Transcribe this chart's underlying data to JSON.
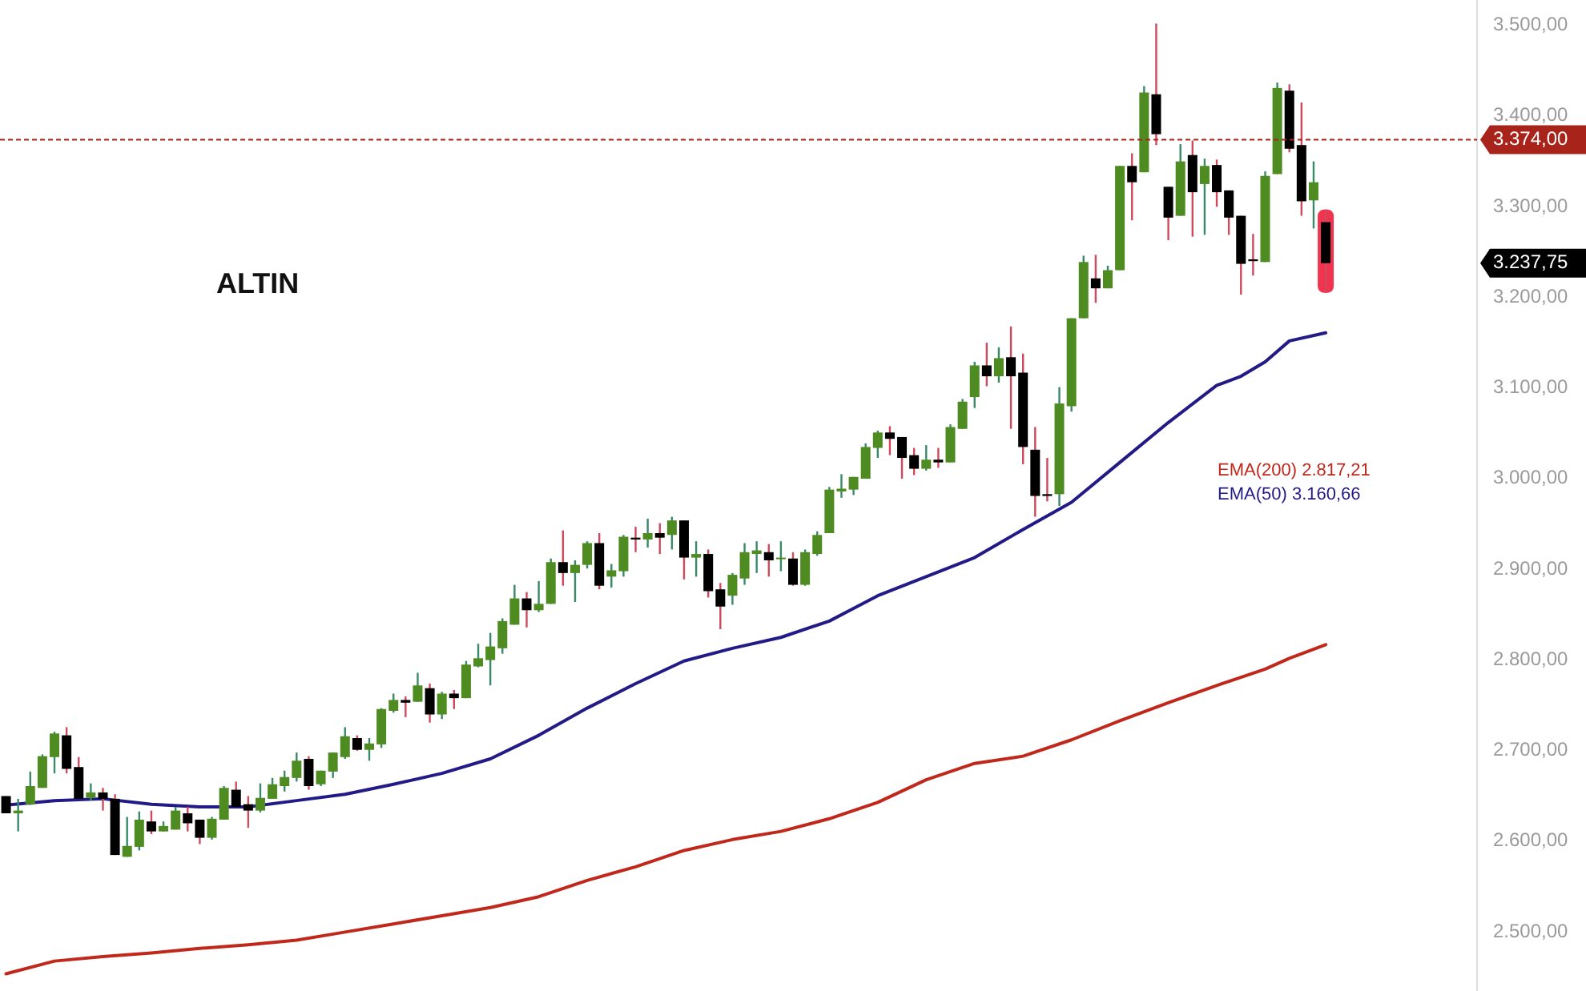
{
  "chart_data": {
    "type": "candlestick",
    "title": "ALTIN",
    "categories": [
      null,
      null,
      null,
      null,
      null,
      null,
      null,
      null,
      null,
      null,
      null,
      null,
      null,
      null,
      null,
      null,
      null,
      null,
      null,
      null,
      null,
      null,
      null,
      null,
      null,
      null,
      null,
      null,
      null,
      null,
      null,
      null,
      null,
      null,
      null,
      null,
      null,
      null,
      null,
      null,
      null,
      null,
      null,
      null,
      null,
      null,
      null,
      null,
      null,
      null,
      null,
      null,
      null,
      null,
      null,
      null,
      null,
      null,
      null,
      null,
      null,
      null,
      null,
      null,
      null,
      null,
      null,
      null,
      null,
      null,
      null,
      null,
      null,
      null,
      null,
      null,
      null,
      null,
      null,
      null,
      null,
      null,
      null,
      null,
      null,
      null,
      null,
      null,
      null,
      null,
      null,
      null,
      null,
      null,
      null,
      null,
      null,
      null,
      null,
      null,
      null,
      null,
      null,
      null,
      null,
      null,
      null,
      null,
      null,
      null,
      null,
      null,
      null,
      null,
      null,
      null,
      null,
      null,
      null,
      null,
      null,
      null
    ],
    "ohlc": [
      [
        2650,
        2650,
        2631,
        2631
      ],
      [
        2631,
        2647,
        2611,
        2634
      ],
      [
        2641,
        2677,
        2640,
        2661
      ],
      [
        2659,
        2696,
        2659,
        2694
      ],
      [
        2693,
        2721,
        2675,
        2719
      ],
      [
        2717,
        2726,
        2675,
        2680
      ],
      [
        2682,
        2693,
        2647,
        2647
      ],
      [
        2648,
        2664,
        2645,
        2654
      ],
      [
        2654,
        2659,
        2634,
        2647
      ],
      [
        2647,
        2652,
        2585,
        2585
      ],
      [
        2583,
        2627,
        2583,
        2595
      ],
      [
        2594,
        2633,
        2590,
        2624
      ],
      [
        2622,
        2634,
        2608,
        2611
      ],
      [
        2611,
        2622,
        2611,
        2617
      ],
      [
        2613,
        2638,
        2613,
        2634
      ],
      [
        2631,
        2638,
        2611,
        2620
      ],
      [
        2624,
        2624,
        2597,
        2604
      ],
      [
        2604,
        2627,
        2602,
        2625
      ],
      [
        2624,
        2661,
        2624,
        2659
      ],
      [
        2657,
        2666,
        2638,
        2638
      ],
      [
        2641,
        2650,
        2615,
        2634
      ],
      [
        2634,
        2664,
        2632,
        2648
      ],
      [
        2647,
        2670,
        2647,
        2663
      ],
      [
        2661,
        2678,
        2655,
        2671
      ],
      [
        2670,
        2698,
        2666,
        2689
      ],
      [
        2691,
        2694,
        2657,
        2661
      ],
      [
        2663,
        2678,
        2661,
        2678
      ],
      [
        2677,
        2698,
        2670,
        2698
      ],
      [
        2693,
        2726,
        2691,
        2716
      ],
      [
        2714,
        2717,
        2700,
        2701
      ],
      [
        2701,
        2714,
        2689,
        2708
      ],
      [
        2707,
        2747,
        2703,
        2746
      ],
      [
        2744,
        2763,
        2742,
        2756
      ],
      [
        2756,
        2760,
        2737,
        2753
      ],
      [
        2754,
        2786,
        2754,
        2772
      ],
      [
        2769,
        2774,
        2731,
        2740
      ],
      [
        2740,
        2765,
        2735,
        2763
      ],
      [
        2763,
        2767,
        2746,
        2758
      ],
      [
        2758,
        2799,
        2758,
        2795
      ],
      [
        2793,
        2818,
        2792,
        2802
      ],
      [
        2800,
        2830,
        2772,
        2815
      ],
      [
        2813,
        2846,
        2807,
        2843
      ],
      [
        2839,
        2883,
        2839,
        2868
      ],
      [
        2868,
        2875,
        2836,
        2855
      ],
      [
        2855,
        2887,
        2853,
        2862
      ],
      [
        2862,
        2912,
        2862,
        2908
      ],
      [
        2908,
        2943,
        2882,
        2896
      ],
      [
        2896,
        2910,
        2864,
        2905
      ],
      [
        2905,
        2931,
        2901,
        2929
      ],
      [
        2929,
        2940,
        2878,
        2882
      ],
      [
        2892,
        2906,
        2880,
        2899
      ],
      [
        2898,
        2938,
        2892,
        2936
      ],
      [
        2935,
        2947,
        2919,
        2933
      ],
      [
        2933,
        2956,
        2924,
        2940
      ],
      [
        2940,
        2951,
        2917,
        2935
      ],
      [
        2938,
        2958,
        2922,
        2954
      ],
      [
        2954,
        2954,
        2889,
        2913
      ],
      [
        2913,
        2931,
        2892,
        2917
      ],
      [
        2917,
        2922,
        2869,
        2876
      ],
      [
        2878,
        2885,
        2834,
        2859
      ],
      [
        2871,
        2896,
        2861,
        2894
      ],
      [
        2890,
        2929,
        2883,
        2919
      ],
      [
        2917,
        2931,
        2896,
        2921
      ],
      [
        2919,
        2928,
        2892,
        2910
      ],
      [
        2912,
        2931,
        2898,
        2913
      ],
      [
        2912,
        2919,
        2882,
        2883
      ],
      [
        2883,
        2922,
        2882,
        2919
      ],
      [
        2917,
        2942,
        2915,
        2938
      ],
      [
        2940,
        2991,
        2940,
        2988
      ],
      [
        2986,
        3005,
        2979,
        2989
      ],
      [
        2988,
        3002,
        2982,
        3002
      ],
      [
        3000,
        3039,
        3000,
        3035
      ],
      [
        3034,
        3053,
        3023,
        3051
      ],
      [
        3051,
        3058,
        3026,
        3044
      ],
      [
        3046,
        3046,
        3000,
        3023
      ],
      [
        3026,
        3034,
        3004,
        3011
      ],
      [
        3011,
        3037,
        3009,
        3021
      ],
      [
        3021,
        3034,
        3012,
        3018
      ],
      [
        3018,
        3060,
        3018,
        3057
      ],
      [
        3055,
        3088,
        3055,
        3085
      ],
      [
        3090,
        3129,
        3078,
        3125
      ],
      [
        3125,
        3150,
        3102,
        3113
      ],
      [
        3113,
        3145,
        3106,
        3133
      ],
      [
        3134,
        3168,
        3055,
        3113
      ],
      [
        3117,
        3138,
        3016,
        3035
      ],
      [
        3032,
        3057,
        2958,
        2981
      ],
      [
        2983,
        3023,
        2975,
        2981
      ],
      [
        2983,
        3101,
        2970,
        3083
      ],
      [
        3080,
        3177,
        3074,
        3177
      ],
      [
        3177,
        3246,
        3177,
        3239
      ],
      [
        3221,
        3247,
        3194,
        3210
      ],
      [
        3210,
        3235,
        3210,
        3230
      ],
      [
        3230,
        3345,
        3230,
        3345
      ],
      [
        3345,
        3359,
        3285,
        3327
      ],
      [
        3338,
        3433,
        3338,
        3426
      ],
      [
        3424,
        3502,
        3368,
        3380
      ],
      [
        3322,
        3322,
        3263,
        3288
      ],
      [
        3290,
        3369,
        3290,
        3350
      ],
      [
        3357,
        3373,
        3267,
        3316
      ],
      [
        3325,
        3353,
        3269,
        3345
      ],
      [
        3346,
        3352,
        3300,
        3316
      ],
      [
        3318,
        3318,
        3269,
        3288
      ],
      [
        3290,
        3290,
        3203,
        3237
      ],
      [
        3242,
        3270,
        3224,
        3240
      ],
      [
        3239,
        3339,
        3239,
        3334
      ],
      [
        3336,
        3437,
        3336,
        3431
      ],
      [
        3428,
        3435,
        3360,
        3364
      ],
      [
        3368,
        3415,
        3290,
        3306
      ],
      [
        3307,
        3350,
        3276,
        3327
      ],
      [
        3283,
        3297,
        3205,
        3237.75
      ],
      null,
      null,
      null,
      null,
      null,
      null,
      null,
      null,
      null,
      null,
      null,
      null
    ],
    "series": [
      {
        "type": "line",
        "name": "EMA(200)  2.817,21",
        "color": "#c0281c",
        "values": [
          2454,
          null,
          null,
          null,
          2468,
          null,
          null,
          null,
          2473,
          null,
          null,
          null,
          2477,
          null,
          null,
          null,
          2482,
          null,
          null,
          null,
          2486,
          null,
          null,
          null,
          2491,
          null,
          null,
          null,
          2500,
          null,
          null,
          null,
          2509,
          null,
          null,
          null,
          2518,
          null,
          null,
          null,
          2527,
          null,
          null,
          null,
          2539,
          null,
          null,
          null,
          2557,
          null,
          null,
          null,
          2572,
          null,
          null,
          null,
          2590,
          null,
          null,
          null,
          2602,
          null,
          null,
          null,
          2611,
          null,
          null,
          null,
          2625,
          null,
          null,
          null,
          2643,
          null,
          null,
          null,
          2668,
          null,
          null,
          null,
          2686,
          null,
          null,
          null,
          2694,
          null,
          null,
          null,
          2712,
          null,
          null,
          null,
          2733,
          null,
          null,
          null,
          2753,
          null,
          null,
          null,
          2772,
          null,
          2781,
          null,
          2790,
          null,
          2802,
          null,
          null,
          2817,
          null,
          null,
          null,
          null,
          null,
          null,
          null,
          null,
          null,
          null,
          null,
          null
        ]
      },
      {
        "type": "line",
        "name": "EMA(50)  3.160,66",
        "color": "#221a86",
        "values": [
          2640,
          null,
          null,
          null,
          2645,
          null,
          null,
          null,
          2647,
          null,
          null,
          null,
          2641,
          null,
          null,
          null,
          2638,
          null,
          null,
          null,
          2638,
          null,
          null,
          null,
          2645,
          null,
          null,
          null,
          2652,
          null,
          null,
          null,
          2663,
          null,
          null,
          null,
          2675,
          null,
          null,
          null,
          2691,
          null,
          null,
          null,
          2717,
          null,
          null,
          null,
          2747,
          null,
          null,
          null,
          2774,
          null,
          null,
          null,
          2799,
          null,
          null,
          null,
          2813,
          null,
          null,
          null,
          2825,
          null,
          null,
          null,
          2843,
          null,
          null,
          null,
          2871,
          null,
          null,
          null,
          2892,
          null,
          null,
          null,
          2913,
          null,
          null,
          null,
          2944,
          null,
          null,
          null,
          2974,
          null,
          null,
          null,
          3018,
          null,
          null,
          null,
          3062,
          null,
          null,
          null,
          3103,
          null,
          3113,
          null,
          3129,
          null,
          3152,
          null,
          null,
          3161,
          null,
          null,
          null,
          null,
          null,
          null,
          null,
          null,
          null,
          null,
          null,
          null
        ]
      }
    ],
    "ylim": [
      2435,
      3528
    ],
    "yticks": [
      {
        "value": 2500,
        "label": "2.500,00"
      },
      {
        "value": 2600,
        "label": "2.600,00"
      },
      {
        "value": 2700,
        "label": "2.700,00"
      },
      {
        "value": 2800,
        "label": "2.800,00"
      },
      {
        "value": 2900,
        "label": "2.900,00"
      },
      {
        "value": 3000,
        "label": "3.000,00"
      },
      {
        "value": 3100,
        "label": "3.100,00"
      },
      {
        "value": 3200,
        "label": "3.200,00"
      },
      {
        "value": 3300,
        "label": "3.300,00"
      },
      {
        "value": 3400,
        "label": "3.400,00"
      },
      {
        "value": 3500,
        "label": "3.500,00"
      }
    ],
    "tick_labels": "y",
    "legend": "right",
    "ref_lines": [
      {
        "axis": "y",
        "value": 3374,
        "label": "3.374,00",
        "color": "#a8231a",
        "line_style": "dashed"
      }
    ],
    "annotations": [
      "3.237,75"
    ]
  }
}
